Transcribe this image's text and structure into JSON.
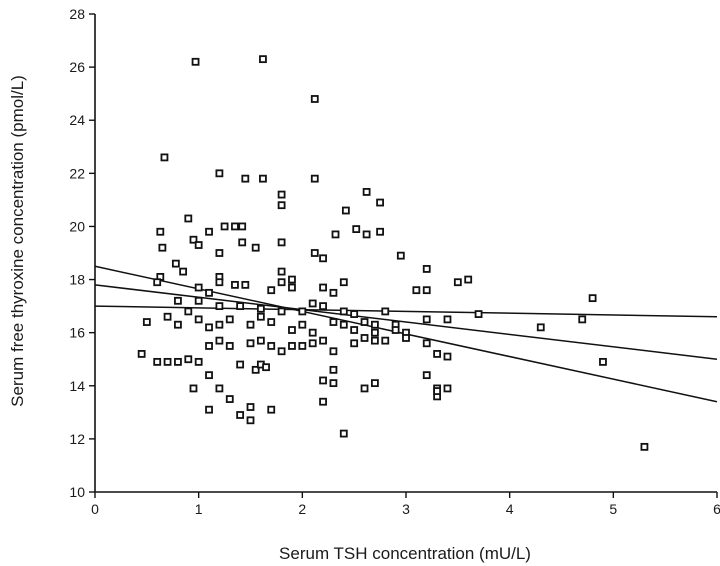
{
  "chart_data": {
    "type": "scatter",
    "title": "",
    "xlabel": "Serum TSH concentration (mU/L)",
    "ylabel": "Serum free thyroxine concentration (pmol/L)",
    "xlim": [
      0,
      6
    ],
    "ylim": [
      10,
      28
    ],
    "xticks": [
      0,
      1,
      2,
      3,
      4,
      5,
      6
    ],
    "yticks": [
      10,
      12,
      14,
      16,
      18,
      20,
      22,
      24,
      26,
      28
    ],
    "grid": false,
    "marker": "open-square",
    "points": [
      [
        0.97,
        26.2
      ],
      [
        1.62,
        26.3
      ],
      [
        2.12,
        24.8
      ],
      [
        0.67,
        22.6
      ],
      [
        1.2,
        22.0
      ],
      [
        1.45,
        21.8
      ],
      [
        1.62,
        21.8
      ],
      [
        2.12,
        21.8
      ],
      [
        1.8,
        21.2
      ],
      [
        1.8,
        20.8
      ],
      [
        2.62,
        21.3
      ],
      [
        2.75,
        20.9
      ],
      [
        2.42,
        20.6
      ],
      [
        0.9,
        20.3
      ],
      [
        1.25,
        20.0
      ],
      [
        1.35,
        20.0
      ],
      [
        1.42,
        20.0
      ],
      [
        0.63,
        19.8
      ],
      [
        1.1,
        19.8
      ],
      [
        2.52,
        19.9
      ],
      [
        2.62,
        19.7
      ],
      [
        2.75,
        19.8
      ],
      [
        2.32,
        19.7
      ],
      [
        0.95,
        19.5
      ],
      [
        1.0,
        19.3
      ],
      [
        1.42,
        19.4
      ],
      [
        1.55,
        19.2
      ],
      [
        1.8,
        19.4
      ],
      [
        0.65,
        19.2
      ],
      [
        1.2,
        19.0
      ],
      [
        2.12,
        19.0
      ],
      [
        2.2,
        18.8
      ],
      [
        2.95,
        18.9
      ],
      [
        0.78,
        18.6
      ],
      [
        0.85,
        18.3
      ],
      [
        0.63,
        18.1
      ],
      [
        0.6,
        17.9
      ],
      [
        1.2,
        18.1
      ],
      [
        1.2,
        17.9
      ],
      [
        1.0,
        17.7
      ],
      [
        1.1,
        17.5
      ],
      [
        1.35,
        17.8
      ],
      [
        1.45,
        17.8
      ],
      [
        1.7,
        17.6
      ],
      [
        1.8,
        18.3
      ],
      [
        1.8,
        17.9
      ],
      [
        1.9,
        18.0
      ],
      [
        1.9,
        17.7
      ],
      [
        2.2,
        17.7
      ],
      [
        2.3,
        17.5
      ],
      [
        2.4,
        17.9
      ],
      [
        3.2,
        18.4
      ],
      [
        3.1,
        17.6
      ],
      [
        3.2,
        17.6
      ],
      [
        3.5,
        17.9
      ],
      [
        3.6,
        18.0
      ],
      [
        3.7,
        16.7
      ],
      [
        4.8,
        17.3
      ],
      [
        4.7,
        16.5
      ],
      [
        4.3,
        16.2
      ],
      [
        4.9,
        14.9
      ],
      [
        5.3,
        11.7
      ],
      [
        0.8,
        17.2
      ],
      [
        1.0,
        17.2
      ],
      [
        1.2,
        17.0
      ],
      [
        1.4,
        17.0
      ],
      [
        1.6,
        16.9
      ],
      [
        1.8,
        16.8
      ],
      [
        2.0,
        16.8
      ],
      [
        2.1,
        17.1
      ],
      [
        2.2,
        17.0
      ],
      [
        2.4,
        16.8
      ],
      [
        2.5,
        16.7
      ],
      [
        2.6,
        16.4
      ],
      [
        2.7,
        16.3
      ],
      [
        2.8,
        16.8
      ],
      [
        2.9,
        16.3
      ],
      [
        3.0,
        16.0
      ],
      [
        3.2,
        16.5
      ],
      [
        3.4,
        16.5
      ],
      [
        0.5,
        16.4
      ],
      [
        0.7,
        16.6
      ],
      [
        0.8,
        16.3
      ],
      [
        0.9,
        16.8
      ],
      [
        1.0,
        16.5
      ],
      [
        1.1,
        16.2
      ],
      [
        1.2,
        16.3
      ],
      [
        1.3,
        16.5
      ],
      [
        1.5,
        16.3
      ],
      [
        1.6,
        16.6
      ],
      [
        1.7,
        16.4
      ],
      [
        1.9,
        16.1
      ],
      [
        2.0,
        16.3
      ],
      [
        2.1,
        16.0
      ],
      [
        2.3,
        16.4
      ],
      [
        2.4,
        16.3
      ],
      [
        2.5,
        16.1
      ],
      [
        2.7,
        16.0
      ],
      [
        2.9,
        16.1
      ],
      [
        0.45,
        15.2
      ],
      [
        0.6,
        14.9
      ],
      [
        0.7,
        14.9
      ],
      [
        0.8,
        14.9
      ],
      [
        0.9,
        15.0
      ],
      [
        1.0,
        14.9
      ],
      [
        1.1,
        15.5
      ],
      [
        1.2,
        15.7
      ],
      [
        1.3,
        15.5
      ],
      [
        1.5,
        15.6
      ],
      [
        1.6,
        15.7
      ],
      [
        1.7,
        15.5
      ],
      [
        1.8,
        15.3
      ],
      [
        1.9,
        15.5
      ],
      [
        2.0,
        15.5
      ],
      [
        2.1,
        15.6
      ],
      [
        2.2,
        15.7
      ],
      [
        2.3,
        15.3
      ],
      [
        2.5,
        15.6
      ],
      [
        2.6,
        15.8
      ],
      [
        2.7,
        15.7
      ],
      [
        2.8,
        15.7
      ],
      [
        3.0,
        15.8
      ],
      [
        3.2,
        15.6
      ],
      [
        3.3,
        15.2
      ],
      [
        3.4,
        15.1
      ],
      [
        0.95,
        13.9
      ],
      [
        1.1,
        14.4
      ],
      [
        1.2,
        13.9
      ],
      [
        1.4,
        14.8
      ],
      [
        1.55,
        14.6
      ],
      [
        1.6,
        14.8
      ],
      [
        1.65,
        14.7
      ],
      [
        2.2,
        14.2
      ],
      [
        2.3,
        14.6
      ],
      [
        2.3,
        14.1
      ],
      [
        2.6,
        13.9
      ],
      [
        2.7,
        14.1
      ],
      [
        3.2,
        14.4
      ],
      [
        3.3,
        13.9
      ],
      [
        3.3,
        13.6
      ],
      [
        3.4,
        13.9
      ],
      [
        1.1,
        13.1
      ],
      [
        1.3,
        13.5
      ],
      [
        1.4,
        12.9
      ],
      [
        1.5,
        13.2
      ],
      [
        1.5,
        12.7
      ],
      [
        1.7,
        13.1
      ],
      [
        2.2,
        13.4
      ],
      [
        2.4,
        12.2
      ],
      [
        3.3,
        13.8
      ]
    ],
    "lines": [
      {
        "x": [
          0,
          6
        ],
        "y": [
          18.5,
          13.4
        ]
      },
      {
        "x": [
          0,
          6
        ],
        "y": [
          17.8,
          15.0
        ]
      },
      {
        "x": [
          0,
          6
        ],
        "y": [
          17.0,
          16.6
        ]
      }
    ]
  }
}
